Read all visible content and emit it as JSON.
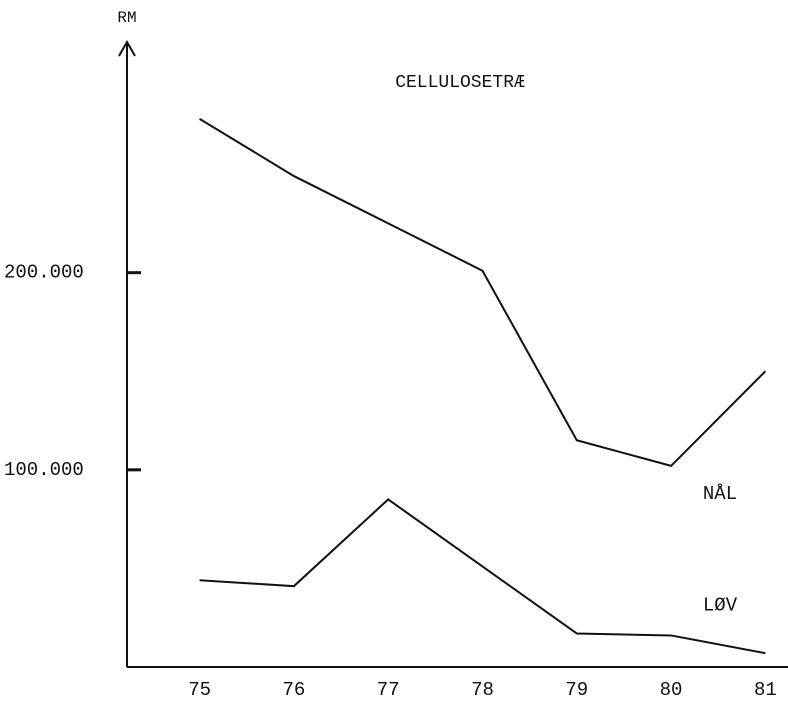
{
  "chart_data": {
    "type": "line",
    "title": "CELLULOSETRÆ",
    "y_label": "RM",
    "x": [
      75,
      76,
      77,
      78,
      79,
      80,
      81
    ],
    "series": [
      {
        "name": "NÅL",
        "color": "#111111",
        "values": [
          278000,
          249000,
          225000,
          201000,
          115000,
          102000,
          150000
        ]
      },
      {
        "name": "LØV",
        "color": "#111111",
        "values": [
          44000,
          41000,
          85000,
          51000,
          17000,
          16000,
          7000
        ]
      }
    ],
    "xlim": [
      74.23,
      81.24
    ],
    "xticks": [
      75,
      76,
      77,
      78,
      79,
      80,
      81
    ],
    "ylim": [
      0,
      317000
    ],
    "yticks": [
      {
        "value": 100000,
        "label": "100.000"
      },
      {
        "value": 200000,
        "label": "200.000"
      }
    ],
    "grid": false
  }
}
